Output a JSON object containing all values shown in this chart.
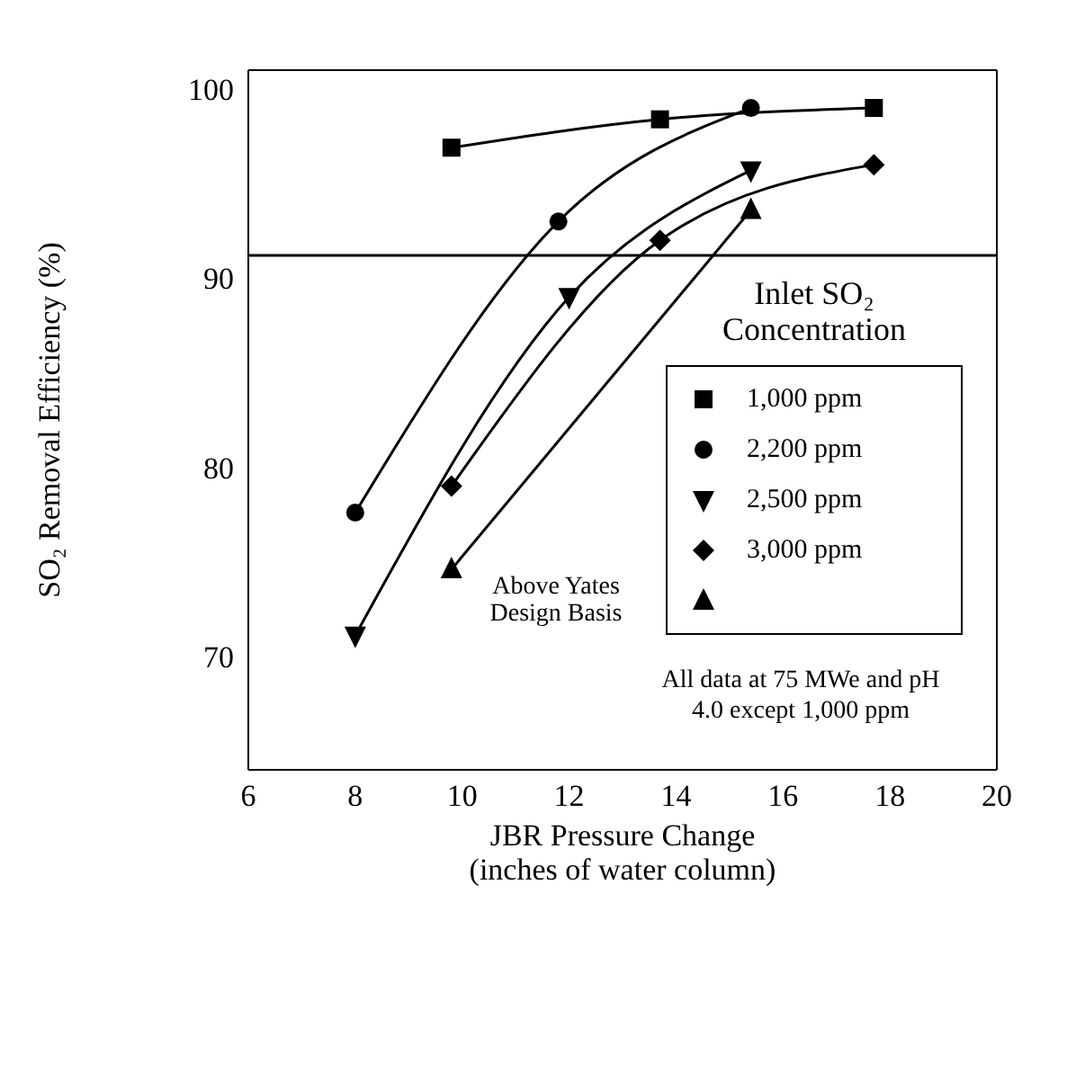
{
  "chart_data": {
    "type": "line",
    "xlabel": "JBR Pressure Change\n(inches of water column)",
    "ylabel": "SO₂ Removal Efficiency (%)",
    "legend_title": "Inlet SO₂ Concentration",
    "annotations": [
      "All data at 75 MWe and pH 4.0 except 1,000 ppm"
    ],
    "series": [
      {
        "name": "1,000 ppm",
        "color": "#000000",
        "marker": "square",
        "x": [
          9.8,
          13.7,
          17.7
        ],
        "values": [
          96.9,
          98.4,
          99.0
        ]
      },
      {
        "name": "2,200 ppm",
        "color": "#000000",
        "marker": "circle",
        "x": [
          8.0,
          11.8,
          15.4
        ],
        "values": [
          77.6,
          93.0,
          99.0
        ]
      },
      {
        "name": "2,500 ppm",
        "color": "#000000",
        "marker": "triangle_down",
        "x": [
          8.0,
          12.0,
          15.4
        ],
        "values": [
          71.1,
          89.0,
          95.7
        ]
      },
      {
        "name": "3,000 ppm",
        "color": "#000000",
        "marker": "diamond",
        "x": [
          9.8,
          13.7,
          17.7
        ],
        "values": [
          79.0,
          92.0,
          96.0
        ]
      },
      {
        "name": "Above Yates Design Basis",
        "color": "#000000",
        "marker": "triangle",
        "x": [
          9.8,
          15.4
        ],
        "values": [
          74.6,
          93.6
        ]
      }
    ],
    "ref_lines": [
      {
        "axis": "y",
        "value": 91.2,
        "color": "#000000"
      }
    ],
    "xlim": [
      6,
      20
    ],
    "xticks": [
      6,
      8,
      10,
      12,
      14,
      16,
      18,
      20
    ],
    "ylim": [
      64,
      101
    ],
    "yticks": [
      70,
      80,
      90,
      100
    ],
    "grid": false,
    "legend": "right",
    "line_style": "solid"
  }
}
